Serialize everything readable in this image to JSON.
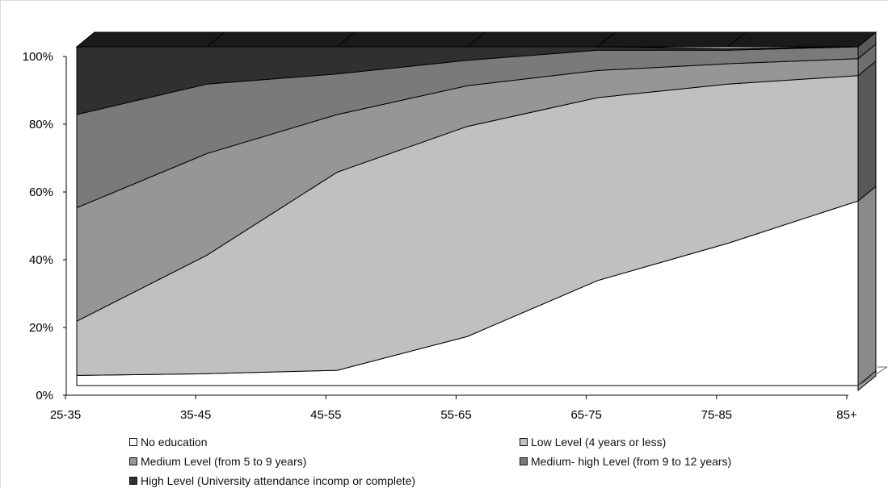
{
  "chart_data": {
    "type": "area",
    "stacked": true,
    "percent": true,
    "three_d": true,
    "categories": [
      "25-35",
      "35-45",
      "45-55",
      "55-65",
      "65-75",
      "75-85",
      "85+"
    ],
    "y_ticks": [
      "0%",
      "20%",
      "40%",
      "60%",
      "80%",
      "100%"
    ],
    "ylim": [
      0,
      100
    ],
    "legend_position": "bottom",
    "series": [
      {
        "name": "No education",
        "color": "#ffffff",
        "values": [
          3,
          3.5,
          4.5,
          14.5,
          31,
          42,
          54.5
        ]
      },
      {
        "name": "Low Level (4 years or less)",
        "color": "#c0c0c0",
        "values": [
          16,
          35,
          58.5,
          62,
          54,
          47,
          37
        ]
      },
      {
        "name": "Medium Level (from 5 to 9 years)",
        "color": "#969696",
        "values": [
          33.5,
          30,
          17,
          12,
          8,
          6,
          5
        ]
      },
      {
        "name": "Medium- high Level (from 9 to 12 years)",
        "color": "#7a7a7a",
        "values": [
          27.5,
          20.5,
          12,
          7.5,
          6,
          4,
          3.5
        ]
      },
      {
        "name": "High Level (University attendance incomp or complete)",
        "color": "#303030",
        "values": [
          20,
          11,
          8,
          4,
          1,
          0.5,
          0
        ]
      }
    ]
  }
}
